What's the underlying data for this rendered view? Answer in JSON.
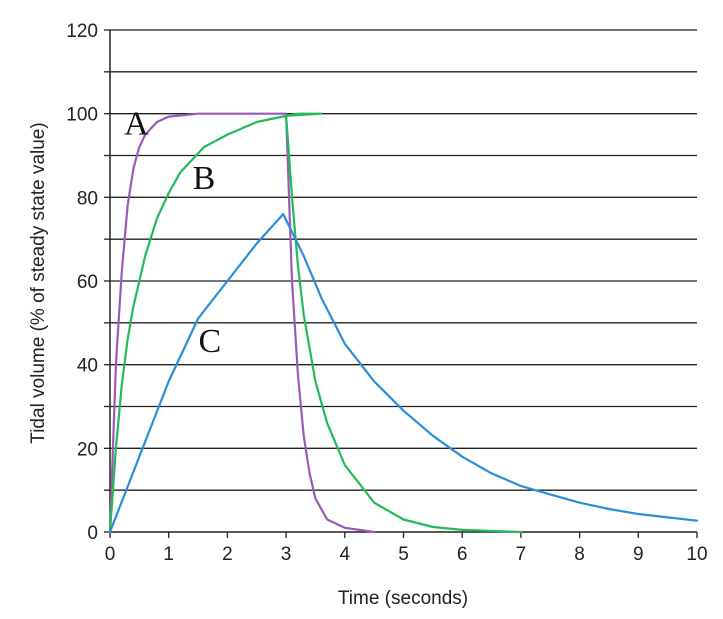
{
  "chart_data": {
    "type": "line",
    "xlabel": "Time (seconds)",
    "ylabel": "Tidal volume (% of steady state value)",
    "xlim": [
      0,
      10
    ],
    "ylim": [
      0,
      120
    ],
    "x_ticks": [
      "0",
      "1",
      "2",
      "3",
      "4",
      "5",
      "6",
      "7",
      "8",
      "9",
      "10"
    ],
    "y_ticks": [
      "0",
      "20",
      "40",
      "60",
      "80",
      "100",
      "120"
    ],
    "gridlines_y": [
      10,
      20,
      30,
      40,
      50,
      60,
      70,
      80,
      90,
      100,
      110,
      120
    ],
    "grid": true,
    "series": [
      {
        "name": "A",
        "color": "#9b59b6",
        "points": [
          [
            0,
            0
          ],
          [
            0.1,
            40
          ],
          [
            0.2,
            62
          ],
          [
            0.3,
            78
          ],
          [
            0.4,
            87
          ],
          [
            0.5,
            92
          ],
          [
            0.6,
            95
          ],
          [
            0.8,
            98
          ],
          [
            1.0,
            99.3
          ],
          [
            1.5,
            100
          ],
          [
            2.0,
            100
          ],
          [
            2.5,
            100
          ],
          [
            3.0,
            100
          ],
          [
            3.1,
            60
          ],
          [
            3.2,
            38
          ],
          [
            3.3,
            23
          ],
          [
            3.4,
            14
          ],
          [
            3.5,
            8
          ],
          [
            3.7,
            3
          ],
          [
            4.0,
            1
          ],
          [
            4.5,
            0
          ]
        ]
      },
      {
        "name": "B",
        "color": "#22bb55",
        "points": [
          [
            0,
            0
          ],
          [
            0.1,
            20
          ],
          [
            0.2,
            35
          ],
          [
            0.3,
            46
          ],
          [
            0.4,
            54
          ],
          [
            0.6,
            66
          ],
          [
            0.8,
            75
          ],
          [
            1.0,
            81
          ],
          [
            1.2,
            86
          ],
          [
            1.4,
            89
          ],
          [
            1.6,
            92
          ],
          [
            2.0,
            95
          ],
          [
            2.5,
            98
          ],
          [
            3.0,
            99.5
          ],
          [
            3.2,
            100
          ],
          [
            3.6,
            100
          ],
          [
            3.0,
            99.5
          ],
          [
            3.05,
            90
          ],
          [
            3.1,
            80
          ],
          [
            3.2,
            64
          ],
          [
            3.3,
            52
          ],
          [
            3.5,
            36
          ],
          [
            3.7,
            26
          ],
          [
            4.0,
            16
          ],
          [
            4.5,
            7
          ],
          [
            5.0,
            3
          ],
          [
            5.5,
            1.2
          ],
          [
            6.0,
            0.5
          ],
          [
            7.0,
            0
          ]
        ]
      },
      {
        "name": "C",
        "color": "#2a8fd6",
        "points": [
          [
            0,
            0
          ],
          [
            0.5,
            18
          ],
          [
            1.0,
            36
          ],
          [
            1.5,
            51
          ],
          [
            2.0,
            60
          ],
          [
            2.5,
            69
          ],
          [
            2.95,
            76
          ],
          [
            3.3,
            66
          ],
          [
            3.6,
            56
          ],
          [
            4.0,
            45
          ],
          [
            4.5,
            36
          ],
          [
            5.0,
            29
          ],
          [
            5.5,
            23
          ],
          [
            6.0,
            18
          ],
          [
            6.5,
            14
          ],
          [
            7.0,
            11
          ],
          [
            7.5,
            9
          ],
          [
            8.0,
            7
          ],
          [
            8.5,
            5.5
          ],
          [
            9.0,
            4.3
          ],
          [
            9.5,
            3.5
          ],
          [
            10.0,
            2.7
          ]
        ]
      }
    ],
    "annotations": [
      {
        "text": "A",
        "x": 0.45,
        "y": 95
      },
      {
        "text": "B",
        "x": 1.6,
        "y": 82
      },
      {
        "text": "C",
        "x": 1.7,
        "y": 43
      }
    ]
  }
}
